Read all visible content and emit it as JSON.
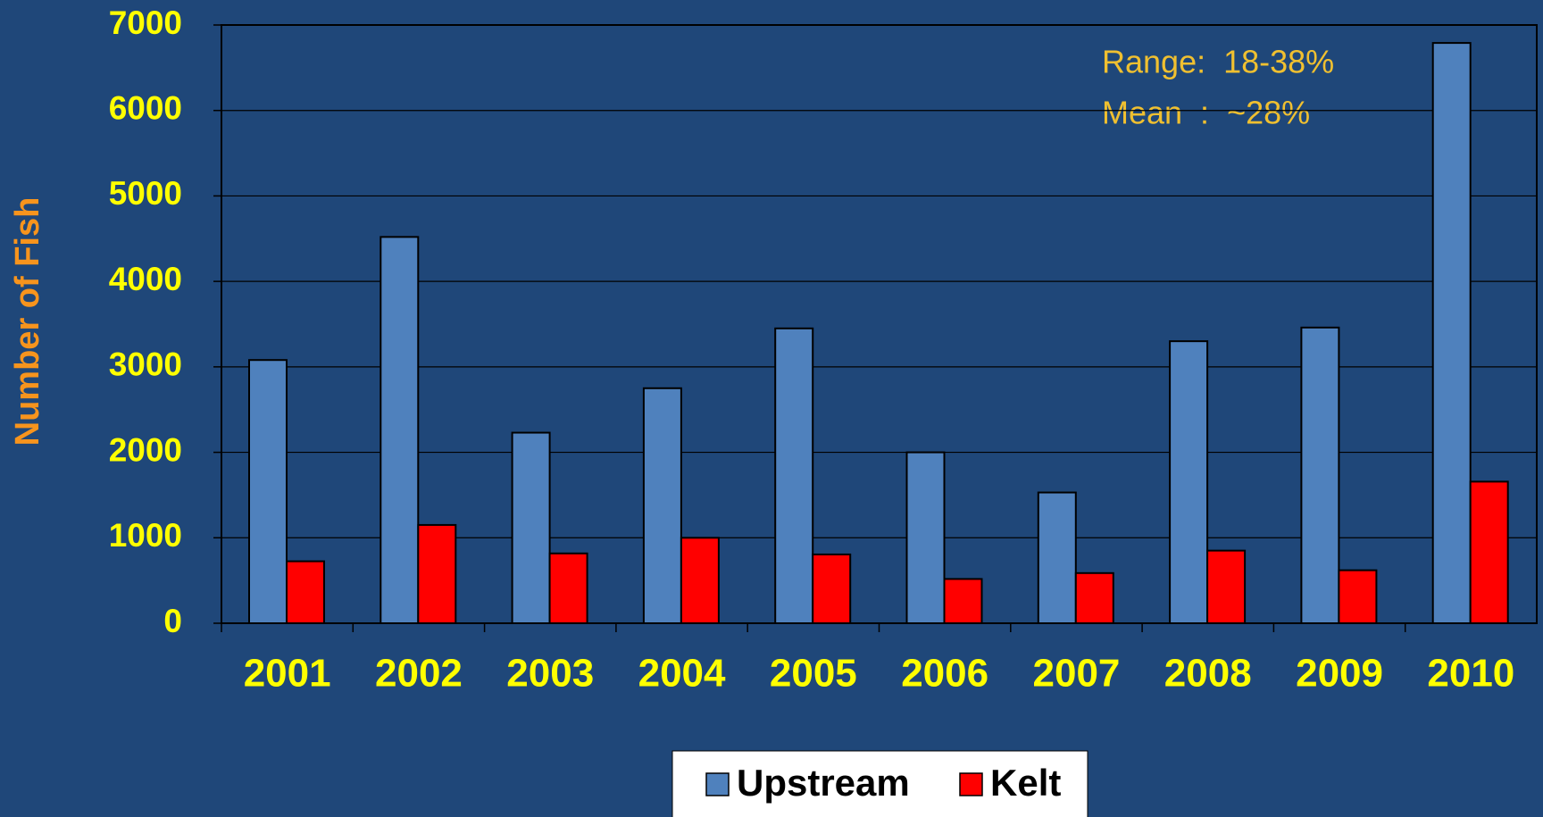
{
  "chart_data": {
    "type": "bar",
    "y_label": "Number of Fish",
    "categories": [
      "2001",
      "2002",
      "2003",
      "2004",
      "2005",
      "2006",
      "2007",
      "2008",
      "2009",
      "2010"
    ],
    "series": [
      {
        "name": "Upstream",
        "color": "#4f81bd",
        "values": [
          3080,
          4520,
          2230,
          2750,
          3450,
          2000,
          1530,
          3300,
          3460,
          6790
        ]
      },
      {
        "name": "Kelt",
        "color": "#ff0000",
        "values": [
          725,
          1150,
          817,
          1000,
          805,
          518,
          587,
          850,
          620,
          1657
        ]
      }
    ],
    "ylim": [
      0,
      7000
    ],
    "yticks": [
      0,
      1000,
      2000,
      3000,
      4000,
      5000,
      6000,
      7000
    ],
    "grid": true,
    "annotations": [
      "Range:  18-38%",
      "Mean  :  ~28%"
    ],
    "legend": "bottom"
  }
}
